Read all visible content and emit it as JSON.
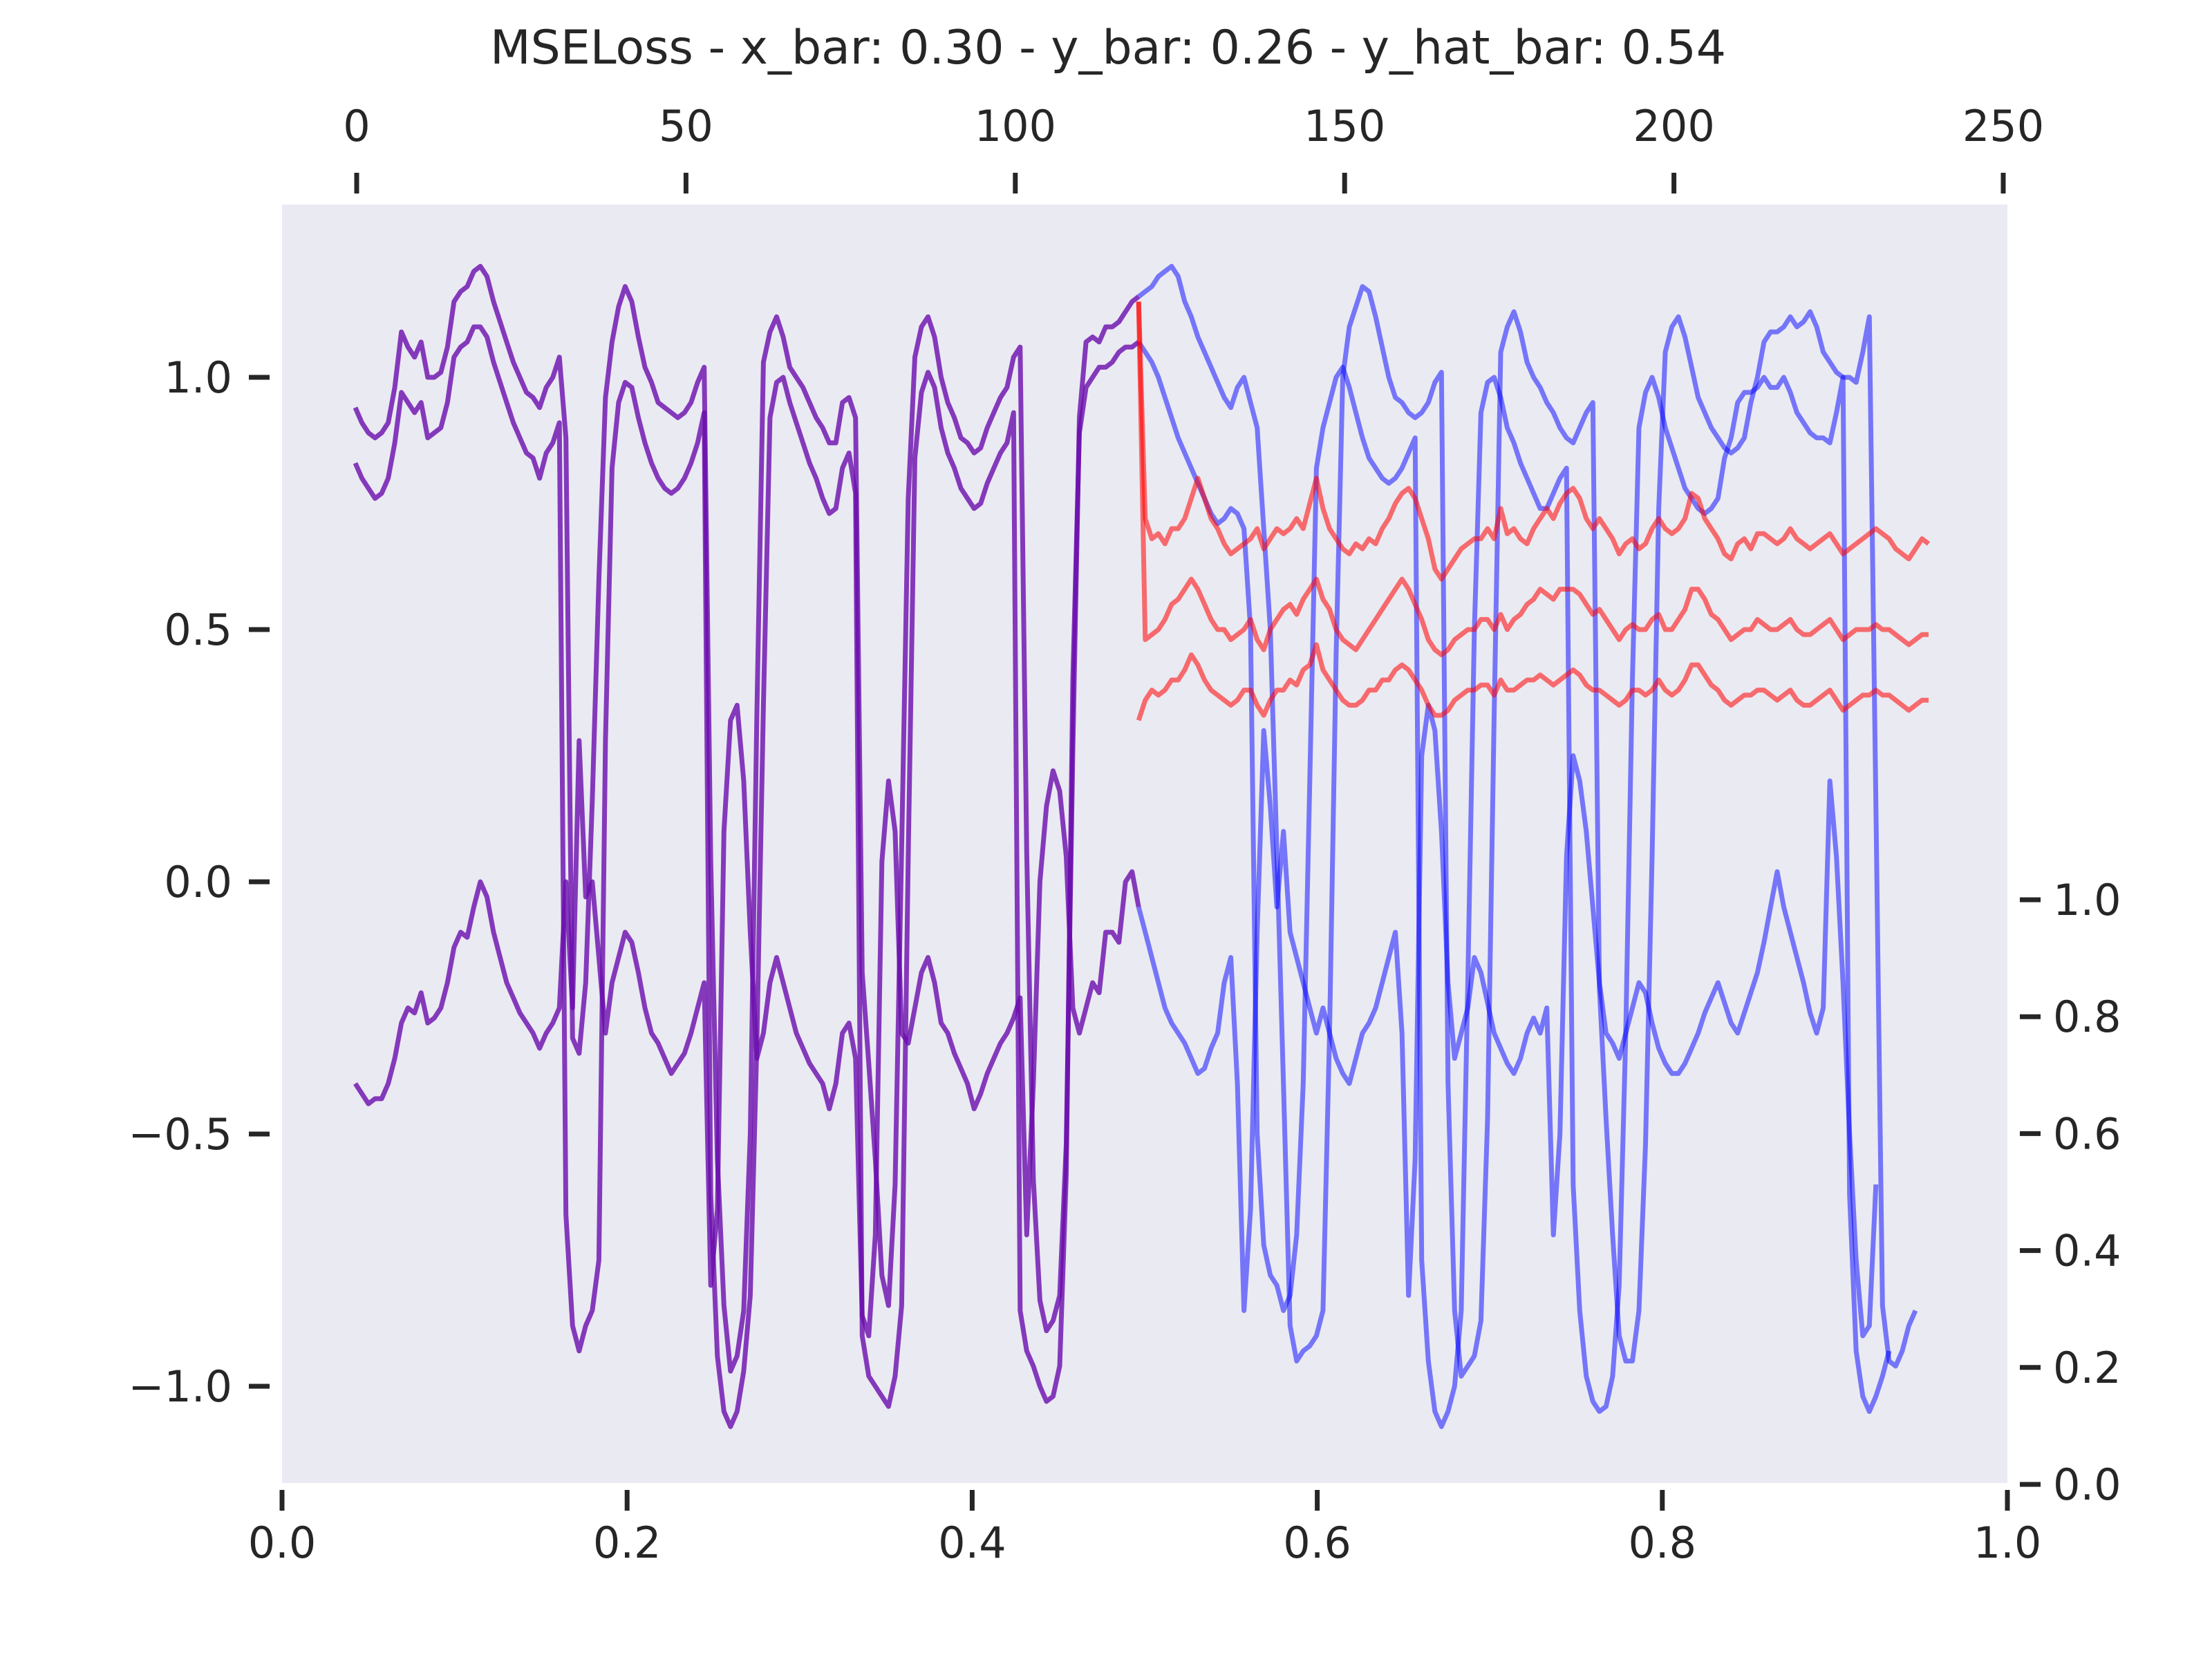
{
  "chart_data": {
    "type": "line",
    "title": "MSELoss - x_bar: 0.30 - y_bar: 0.26 - y_hat_bar: 0.54",
    "xlabel": "",
    "ylabel": "",
    "colors": {
      "input": "#6a0dad",
      "target": "#0000ff",
      "prediction": "#ff0000",
      "background": "#eaeaf2"
    },
    "grid": false,
    "axes": {
      "bottom": {
        "range": [
          0.0,
          1.0
        ],
        "ticks": [
          "0.0",
          "0.2",
          "0.4",
          "0.6",
          "0.8",
          "1.0"
        ]
      },
      "top": {
        "range": [
          0,
          250
        ],
        "ticks": [
          "0",
          "50",
          "100",
          "150",
          "200",
          "250"
        ]
      },
      "left": {
        "range": [
          -1.2,
          1.3
        ],
        "ticks": [
          "−1.0",
          "−0.5",
          "0.0",
          "0.5",
          "1.0"
        ]
      },
      "right": {
        "range": [
          0.0,
          2.4
        ],
        "ticks": [
          "0.0",
          "0.2",
          "0.4",
          "0.6",
          "0.8",
          "1.0"
        ]
      }
    },
    "x_top_domain": [
      0,
      239
    ],
    "input_end_index": 119,
    "series": [
      {
        "role": "input+target",
        "values": [
          0.94,
          0.91,
          0.89,
          0.88,
          0.89,
          0.91,
          0.98,
          1.09,
          1.06,
          1.04,
          1.07,
          1.0,
          1.0,
          1.01,
          1.06,
          1.15,
          1.17,
          1.18,
          1.21,
          1.22,
          1.2,
          1.15,
          1.11,
          1.07,
          1.03,
          1.0,
          0.97,
          0.96,
          0.94,
          0.98,
          1.0,
          1.04,
          0.88,
          -0.31,
          -0.34,
          -0.2,
          0.16,
          0.6,
          0.96,
          1.07,
          1.14,
          1.18,
          1.15,
          1.08,
          1.02,
          0.99,
          0.95,
          0.94,
          0.93,
          0.92,
          0.93,
          0.95,
          0.99,
          1.02,
          0.04,
          -0.55,
          -0.84,
          -0.97,
          -0.94,
          -0.85,
          -0.5,
          0.33,
          1.03,
          1.09,
          1.12,
          1.08,
          1.02,
          1.0,
          0.98,
          0.95,
          0.92,
          0.9,
          0.87,
          0.87,
          0.95,
          0.96,
          0.92,
          -0.18,
          -0.36,
          -0.55,
          -0.78,
          -0.84,
          -0.6,
          0.07,
          0.76,
          1.04,
          1.1,
          1.12,
          1.08,
          1.0,
          0.95,
          0.92,
          0.88,
          0.87,
          0.85,
          0.86,
          0.9,
          0.93,
          0.96,
          0.98,
          1.04,
          1.06,
          0.06,
          -0.59,
          -0.83,
          -0.89,
          -0.87,
          -0.82,
          -0.52,
          0.26,
          0.92,
          1.07,
          1.08,
          1.07,
          1.1,
          1.1,
          1.11,
          1.13,
          1.15,
          1.16,
          1.17,
          1.18,
          1.2,
          1.21,
          1.22,
          1.2,
          1.15,
          1.12,
          1.08,
          1.05,
          1.02,
          0.99,
          0.96,
          0.94,
          0.98,
          1.0,
          0.95,
          0.9,
          0.7,
          0.5,
          0.06,
          -0.4,
          -0.88,
          -0.95,
          -0.93,
          -0.92,
          -0.9,
          -0.85,
          -0.3,
          0.45,
          1.0,
          1.1,
          1.14,
          1.18,
          1.17,
          1.12,
          1.06,
          1.0,
          0.96,
          0.95,
          0.93,
          0.92,
          0.93,
          0.95,
          0.99,
          1.01,
          -0.4,
          -0.85,
          -0.98,
          -0.96,
          -0.94,
          -0.87,
          -0.47,
          0.33,
          1.05,
          1.1,
          1.13,
          1.09,
          1.03,
          1.0,
          0.98,
          0.95,
          0.93,
          0.9,
          0.88,
          0.87,
          0.9,
          0.93,
          0.95,
          -0.21,
          -0.47,
          -0.7,
          -0.9,
          -0.95,
          -0.95,
          -0.85,
          -0.52,
          0.05,
          0.74,
          1.05,
          1.1,
          1.12,
          1.08,
          1.02,
          0.96,
          0.93,
          0.9,
          0.88,
          0.86,
          0.85,
          0.86,
          0.88,
          0.95,
          1.0,
          1.07,
          1.09,
          1.09,
          1.1,
          1.12,
          1.1,
          1.11,
          1.13,
          1.1,
          1.05,
          1.03,
          1.01,
          1.0,
          1.0,
          0.99,
          1.05,
          1.12,
          0.15,
          -0.84,
          -0.95,
          -0.96,
          -0.93,
          -0.88,
          -0.85
        ]
      },
      {
        "role": "input+target",
        "values": [
          0.83,
          0.8,
          0.78,
          0.76,
          0.77,
          0.8,
          0.87,
          0.97,
          0.95,
          0.93,
          0.95,
          0.88,
          0.89,
          0.9,
          0.95,
          1.04,
          1.06,
          1.07,
          1.1,
          1.1,
          1.08,
          1.03,
          0.99,
          0.95,
          0.91,
          0.88,
          0.85,
          0.84,
          0.8,
          0.85,
          0.87,
          0.91,
          -0.66,
          -0.88,
          -0.93,
          -0.88,
          -0.85,
          -0.75,
          0.28,
          0.82,
          0.95,
          0.99,
          0.98,
          0.92,
          0.87,
          0.83,
          0.8,
          0.78,
          0.77,
          0.78,
          0.8,
          0.83,
          0.87,
          0.93,
          -0.62,
          -0.94,
          -1.05,
          -1.08,
          -1.05,
          -0.97,
          -0.82,
          -0.32,
          0.35,
          0.92,
          0.99,
          1.0,
          0.95,
          0.91,
          0.87,
          0.83,
          0.8,
          0.76,
          0.73,
          0.74,
          0.82,
          0.85,
          0.77,
          -0.9,
          -0.98,
          -1.0,
          -1.02,
          -1.04,
          -0.98,
          -0.84,
          0.05,
          0.84,
          0.97,
          1.01,
          0.98,
          0.9,
          0.85,
          0.82,
          0.78,
          0.76,
          0.74,
          0.75,
          0.79,
          0.82,
          0.85,
          0.87,
          0.93,
          -0.85,
          -0.93,
          -0.96,
          -1.0,
          -1.03,
          -1.02,
          -0.96,
          -0.58,
          0.4,
          0.89,
          0.98,
          1.0,
          1.02,
          1.02,
          1.03,
          1.05,
          1.06,
          1.06,
          1.07,
          1.05,
          1.03,
          1.0,
          0.96,
          0.92,
          0.88,
          0.85,
          0.82,
          0.79,
          0.76,
          0.73,
          0.71,
          0.72,
          0.74,
          0.73,
          0.7,
          0.5,
          -0.5,
          -0.72,
          -0.78,
          -0.8,
          -0.85,
          -0.82,
          -0.7,
          -0.4,
          0.2,
          0.82,
          0.9,
          0.95,
          1.0,
          1.02,
          0.98,
          0.93,
          0.88,
          0.84,
          0.82,
          0.8,
          0.79,
          0.8,
          0.82,
          0.85,
          0.88,
          -0.75,
          -0.95,
          -1.05,
          -1.08,
          -1.05,
          -1.0,
          -0.85,
          -0.2,
          0.5,
          0.93,
          0.99,
          1.0,
          0.96,
          0.9,
          0.87,
          0.83,
          0.8,
          0.77,
          0.74,
          0.74,
          0.77,
          0.8,
          0.82,
          -0.6,
          -0.85,
          -0.98,
          -1.03,
          -1.05,
          -1.04,
          -0.98,
          -0.8,
          -0.3,
          0.4,
          0.9,
          0.97,
          1.0,
          0.96,
          0.9,
          0.86,
          0.82,
          0.78,
          0.76,
          0.74,
          0.73,
          0.74,
          0.76,
          0.84,
          0.88,
          0.95,
          0.97,
          0.97,
          0.98,
          1.0,
          0.98,
          0.98,
          1.0,
          0.97,
          0.93,
          0.91,
          0.89,
          0.88,
          0.88,
          0.87,
          0.93,
          1.0,
          -0.62,
          -0.93,
          -1.02,
          -1.05,
          -1.02,
          -0.98,
          -0.93
        ]
      },
      {
        "role": "input+target",
        "values": [
          -0.4,
          -0.42,
          -0.44,
          -0.43,
          -0.43,
          -0.4,
          -0.35,
          -0.28,
          -0.25,
          -0.26,
          -0.22,
          -0.28,
          -0.27,
          -0.25,
          -0.2,
          -0.13,
          -0.1,
          -0.11,
          -0.05,
          0.0,
          -0.03,
          -0.1,
          -0.15,
          -0.2,
          -0.23,
          -0.26,
          -0.28,
          -0.3,
          -0.33,
          -0.3,
          -0.28,
          -0.25,
          0.0,
          -0.25,
          0.28,
          -0.03,
          0.0,
          -0.15,
          -0.3,
          -0.2,
          -0.15,
          -0.1,
          -0.12,
          -0.18,
          -0.25,
          -0.3,
          -0.32,
          -0.35,
          -0.38,
          -0.36,
          -0.34,
          -0.3,
          -0.25,
          -0.2,
          -0.8,
          -0.65,
          0.1,
          0.32,
          0.35,
          0.2,
          -0.1,
          -0.35,
          -0.3,
          -0.2,
          -0.15,
          -0.2,
          -0.25,
          -0.3,
          -0.33,
          -0.36,
          -0.38,
          -0.4,
          -0.45,
          -0.4,
          -0.3,
          -0.28,
          -0.35,
          -0.86,
          -0.9,
          -0.7,
          0.04,
          0.2,
          0.1,
          -0.3,
          -0.32,
          -0.25,
          -0.18,
          -0.15,
          -0.2,
          -0.28,
          -0.3,
          -0.34,
          -0.37,
          -0.4,
          -0.45,
          -0.42,
          -0.38,
          -0.35,
          -0.32,
          -0.3,
          -0.27,
          -0.23,
          -0.7,
          -0.4,
          0.0,
          0.15,
          0.22,
          0.18,
          0.05,
          -0.25,
          -0.3,
          -0.25,
          -0.2,
          -0.22,
          -0.1,
          -0.1,
          -0.12,
          0.0,
          0.02,
          -0.05,
          -0.1,
          -0.15,
          -0.2,
          -0.25,
          -0.28,
          -0.3,
          -0.32,
          -0.35,
          -0.38,
          -0.37,
          -0.33,
          -0.3,
          -0.2,
          -0.15,
          -0.4,
          -0.85,
          -0.65,
          -0.1,
          0.3,
          0.15,
          -0.05,
          0.1,
          -0.1,
          -0.15,
          -0.2,
          -0.25,
          -0.3,
          -0.25,
          -0.3,
          -0.35,
          -0.38,
          -0.4,
          -0.35,
          -0.3,
          -0.28,
          -0.25,
          -0.2,
          -0.15,
          -0.1,
          -0.3,
          -0.82,
          -0.55,
          0.25,
          0.35,
          0.3,
          0.1,
          -0.2,
          -0.35,
          -0.3,
          -0.25,
          -0.15,
          -0.18,
          -0.24,
          -0.3,
          -0.33,
          -0.36,
          -0.38,
          -0.35,
          -0.3,
          -0.27,
          -0.3,
          -0.25,
          -0.7,
          -0.5,
          0.05,
          0.25,
          0.2,
          0.1,
          -0.05,
          -0.2,
          -0.3,
          -0.32,
          -0.35,
          -0.3,
          -0.25,
          -0.2,
          -0.22,
          -0.28,
          -0.33,
          -0.36,
          -0.38,
          -0.38,
          -0.36,
          -0.33,
          -0.3,
          -0.26,
          -0.23,
          -0.2,
          -0.24,
          -0.28,
          -0.3,
          -0.26,
          -0.22,
          -0.18,
          -0.12,
          -0.05,
          0.02,
          -0.05,
          -0.1,
          -0.15,
          -0.2,
          -0.26,
          -0.3,
          -0.25,
          0.2,
          0.05,
          -0.2,
          -0.5,
          -0.75,
          -0.9,
          -0.88,
          -0.6
        ]
      },
      {
        "role": "prediction",
        "x_start": 119,
        "values": [
          1.15,
          0.72,
          0.68,
          0.69,
          0.67,
          0.7,
          0.7,
          0.72,
          0.76,
          0.8,
          0.76,
          0.72,
          0.7,
          0.67,
          0.65,
          0.66,
          0.67,
          0.68,
          0.7,
          0.66,
          0.68,
          0.7,
          0.69,
          0.7,
          0.72,
          0.7,
          0.75,
          0.8,
          0.74,
          0.7,
          0.68,
          0.66,
          0.65,
          0.67,
          0.66,
          0.68,
          0.67,
          0.7,
          0.72,
          0.75,
          0.77,
          0.78,
          0.76,
          0.72,
          0.68,
          0.62,
          0.6,
          0.62,
          0.64,
          0.66,
          0.67,
          0.68,
          0.68,
          0.7,
          0.68,
          0.74,
          0.69,
          0.7,
          0.68,
          0.67,
          0.7,
          0.72,
          0.74,
          0.72,
          0.75,
          0.77,
          0.78,
          0.76,
          0.72,
          0.7,
          0.72,
          0.7,
          0.68,
          0.65,
          0.67,
          0.68,
          0.66,
          0.67,
          0.7,
          0.72,
          0.7,
          0.69,
          0.7,
          0.72,
          0.77,
          0.76,
          0.72,
          0.7,
          0.68,
          0.65,
          0.64,
          0.67,
          0.68,
          0.66,
          0.69,
          0.69,
          0.68,
          0.67,
          0.68,
          0.7,
          0.68,
          0.67,
          0.66,
          0.67,
          0.68,
          0.69,
          0.67,
          0.65,
          0.66,
          0.67,
          0.68,
          0.69,
          0.7,
          0.69,
          0.68,
          0.66,
          0.65,
          0.64,
          0.66,
          0.68,
          0.67
        ]
      },
      {
        "role": "prediction",
        "x_start": 119,
        "values": [
          1.15,
          0.48,
          0.49,
          0.5,
          0.52,
          0.55,
          0.56,
          0.58,
          0.6,
          0.58,
          0.55,
          0.52,
          0.5,
          0.5,
          0.48,
          0.49,
          0.5,
          0.52,
          0.48,
          0.46,
          0.5,
          0.52,
          0.54,
          0.55,
          0.53,
          0.56,
          0.58,
          0.6,
          0.56,
          0.54,
          0.5,
          0.48,
          0.47,
          0.46,
          0.48,
          0.5,
          0.52,
          0.54,
          0.56,
          0.58,
          0.6,
          0.58,
          0.55,
          0.52,
          0.48,
          0.46,
          0.45,
          0.46,
          0.48,
          0.49,
          0.5,
          0.5,
          0.52,
          0.52,
          0.5,
          0.53,
          0.5,
          0.52,
          0.53,
          0.55,
          0.56,
          0.58,
          0.57,
          0.56,
          0.58,
          0.58,
          0.58,
          0.57,
          0.55,
          0.53,
          0.54,
          0.52,
          0.5,
          0.48,
          0.5,
          0.51,
          0.5,
          0.5,
          0.52,
          0.53,
          0.5,
          0.5,
          0.52,
          0.54,
          0.58,
          0.58,
          0.56,
          0.53,
          0.52,
          0.5,
          0.48,
          0.49,
          0.5,
          0.5,
          0.52,
          0.51,
          0.5,
          0.5,
          0.51,
          0.52,
          0.5,
          0.49,
          0.49,
          0.5,
          0.51,
          0.52,
          0.5,
          0.48,
          0.49,
          0.5,
          0.5,
          0.5,
          0.51,
          0.5,
          0.5,
          0.49,
          0.48,
          0.47,
          0.48,
          0.49,
          0.49
        ]
      },
      {
        "role": "prediction",
        "x_start": 119,
        "values": [
          0.32,
          0.36,
          0.38,
          0.37,
          0.38,
          0.4,
          0.4,
          0.42,
          0.45,
          0.43,
          0.4,
          0.38,
          0.37,
          0.36,
          0.35,
          0.36,
          0.38,
          0.38,
          0.35,
          0.33,
          0.36,
          0.38,
          0.38,
          0.4,
          0.39,
          0.42,
          0.43,
          0.47,
          0.42,
          0.4,
          0.38,
          0.36,
          0.35,
          0.35,
          0.36,
          0.38,
          0.38,
          0.4,
          0.4,
          0.42,
          0.43,
          0.42,
          0.4,
          0.38,
          0.35,
          0.33,
          0.33,
          0.34,
          0.36,
          0.37,
          0.38,
          0.38,
          0.39,
          0.39,
          0.37,
          0.4,
          0.38,
          0.38,
          0.39,
          0.4,
          0.4,
          0.41,
          0.4,
          0.39,
          0.4,
          0.41,
          0.42,
          0.41,
          0.39,
          0.38,
          0.38,
          0.37,
          0.36,
          0.35,
          0.36,
          0.38,
          0.38,
          0.37,
          0.38,
          0.4,
          0.38,
          0.37,
          0.38,
          0.4,
          0.43,
          0.43,
          0.41,
          0.39,
          0.38,
          0.36,
          0.35,
          0.36,
          0.37,
          0.37,
          0.38,
          0.38,
          0.37,
          0.36,
          0.37,
          0.38,
          0.36,
          0.35,
          0.35,
          0.36,
          0.37,
          0.38,
          0.36,
          0.34,
          0.35,
          0.36,
          0.37,
          0.37,
          0.38,
          0.37,
          0.37,
          0.36,
          0.35,
          0.34,
          0.35,
          0.36,
          0.36
        ]
      }
    ]
  }
}
